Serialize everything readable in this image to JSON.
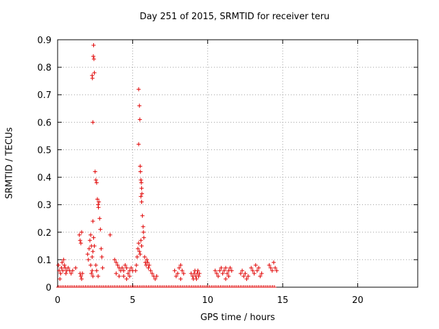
{
  "chart_data": {
    "type": "scatter",
    "title": "Day 251 of 2015, SRMTID for receiver teru",
    "xlabel": "GPS time / hours",
    "ylabel": "SRMTID / TECUs",
    "xlim": [
      0,
      24
    ],
    "ylim": [
      0,
      0.9
    ],
    "xticks": [
      "0",
      "5",
      "10",
      "15",
      "20"
    ],
    "xtick_values": [
      0,
      5,
      10,
      15,
      20
    ],
    "yticks": [
      "0",
      "0.1",
      "0.2",
      "0.3",
      "0.4",
      "0.5",
      "0.6",
      "0.7",
      "0.8",
      "0.9"
    ],
    "ytick_values": [
      0,
      0.1,
      0.2,
      0.3,
      0.4,
      0.5,
      0.6,
      0.7,
      0.8,
      0.9
    ],
    "grid": true,
    "marker": "+",
    "color": "#e00000",
    "series": [
      {
        "points": [
          [
            0.05,
            0.08
          ],
          [
            0.1,
            0.06
          ],
          [
            0.15,
            0.03
          ],
          [
            0.2,
            0.05
          ],
          [
            0.25,
            0.07
          ],
          [
            0.3,
            0.09
          ],
          [
            0.35,
            0.06
          ],
          [
            0.4,
            0.1
          ],
          [
            0.45,
            0.08
          ],
          [
            0.5,
            0.07
          ],
          [
            0.55,
            0.05
          ],
          [
            0.6,
            0.06
          ],
          [
            0.7,
            0.07
          ],
          [
            0.8,
            0.06
          ],
          [
            0.9,
            0.05
          ],
          [
            1.0,
            0.06
          ],
          [
            1.2,
            0.07
          ],
          [
            1.45,
            0.19
          ],
          [
            1.5,
            0.17
          ],
          [
            1.55,
            0.16
          ],
          [
            1.6,
            0.2
          ],
          [
            1.5,
            0.05
          ],
          [
            1.55,
            0.04
          ],
          [
            1.6,
            0.03
          ],
          [
            1.65,
            0.05
          ],
          [
            2.0,
            0.12
          ],
          [
            2.05,
            0.1
          ],
          [
            2.1,
            0.14
          ],
          [
            2.15,
            0.17
          ],
          [
            2.2,
            0.19
          ],
          [
            2.25,
            0.15
          ],
          [
            2.3,
            0.11
          ],
          [
            2.35,
            0.13
          ],
          [
            2.2,
            0.08
          ],
          [
            2.25,
            0.05
          ],
          [
            2.3,
            0.06
          ],
          [
            2.35,
            0.04
          ],
          [
            2.3,
            0.77
          ],
          [
            2.32,
            0.76
          ],
          [
            2.35,
            0.6
          ],
          [
            2.38,
            0.84
          ],
          [
            2.4,
            0.88
          ],
          [
            2.42,
            0.83
          ],
          [
            2.45,
            0.78
          ],
          [
            2.35,
            0.24
          ],
          [
            2.4,
            0.18
          ],
          [
            2.45,
            0.15
          ],
          [
            2.5,
            0.42
          ],
          [
            2.55,
            0.39
          ],
          [
            2.6,
            0.38
          ],
          [
            2.65,
            0.32
          ],
          [
            2.7,
            0.3
          ],
          [
            2.72,
            0.29
          ],
          [
            2.75,
            0.31
          ],
          [
            2.8,
            0.25
          ],
          [
            2.85,
            0.21
          ],
          [
            2.9,
            0.14
          ],
          [
            2.95,
            0.11
          ],
          [
            3.0,
            0.07
          ],
          [
            2.55,
            0.08
          ],
          [
            2.6,
            0.06
          ],
          [
            2.7,
            0.04
          ],
          [
            3.5,
            0.19
          ],
          [
            3.8,
            0.1
          ],
          [
            3.9,
            0.09
          ],
          [
            4.0,
            0.08
          ],
          [
            4.1,
            0.07
          ],
          [
            4.2,
            0.06
          ],
          [
            4.3,
            0.07
          ],
          [
            4.4,
            0.06
          ],
          [
            4.5,
            0.08
          ],
          [
            4.6,
            0.07
          ],
          [
            4.7,
            0.05
          ],
          [
            4.8,
            0.06
          ],
          [
            4.9,
            0.07
          ],
          [
            5.0,
            0.06
          ],
          [
            4.4,
            0.04
          ],
          [
            4.6,
            0.03
          ],
          [
            4.8,
            0.04
          ],
          [
            3.9,
            0.05
          ],
          [
            4.1,
            0.04
          ],
          [
            5.2,
            0.06
          ],
          [
            5.25,
            0.08
          ],
          [
            5.3,
            0.11
          ],
          [
            5.35,
            0.14
          ],
          [
            5.4,
            0.16
          ],
          [
            5.45,
            0.13
          ],
          [
            5.5,
            0.12
          ],
          [
            5.55,
            0.17
          ],
          [
            5.6,
            0.15
          ],
          [
            5.4,
            0.72
          ],
          [
            5.45,
            0.66
          ],
          [
            5.48,
            0.61
          ],
          [
            5.4,
            0.52
          ],
          [
            5.5,
            0.44
          ],
          [
            5.52,
            0.42
          ],
          [
            5.55,
            0.39
          ],
          [
            5.58,
            0.38
          ],
          [
            5.6,
            0.36
          ],
          [
            5.62,
            0.34
          ],
          [
            5.55,
            0.33
          ],
          [
            5.6,
            0.31
          ],
          [
            5.65,
            0.26
          ],
          [
            5.7,
            0.22
          ],
          [
            5.72,
            0.2
          ],
          [
            5.75,
            0.18
          ],
          [
            5.8,
            0.11
          ],
          [
            5.85,
            0.09
          ],
          [
            5.9,
            0.08
          ],
          [
            5.95,
            0.1
          ],
          [
            6.0,
            0.09
          ],
          [
            6.05,
            0.07
          ],
          [
            6.1,
            0.08
          ],
          [
            6.2,
            0.06
          ],
          [
            6.3,
            0.05
          ],
          [
            6.4,
            0.04
          ],
          [
            6.5,
            0.03
          ],
          [
            6.6,
            0.04
          ],
          [
            7.8,
            0.06
          ],
          [
            7.9,
            0.04
          ],
          [
            8.0,
            0.05
          ],
          [
            8.1,
            0.07
          ],
          [
            8.2,
            0.08
          ],
          [
            8.3,
            0.06
          ],
          [
            8.4,
            0.05
          ],
          [
            8.2,
            0.03
          ],
          [
            8.9,
            0.05
          ],
          [
            9.0,
            0.04
          ],
          [
            9.05,
            0.03
          ],
          [
            9.1,
            0.05
          ],
          [
            9.15,
            0.06
          ],
          [
            9.2,
            0.04
          ],
          [
            9.25,
            0.03
          ],
          [
            9.3,
            0.05
          ],
          [
            9.35,
            0.06
          ],
          [
            9.4,
            0.04
          ],
          [
            9.45,
            0.05
          ],
          [
            10.5,
            0.06
          ],
          [
            10.6,
            0.05
          ],
          [
            10.7,
            0.04
          ],
          [
            10.8,
            0.06
          ],
          [
            10.9,
            0.07
          ],
          [
            11.0,
            0.05
          ],
          [
            11.1,
            0.06
          ],
          [
            11.2,
            0.07
          ],
          [
            11.3,
            0.05
          ],
          [
            11.4,
            0.06
          ],
          [
            11.5,
            0.07
          ],
          [
            11.6,
            0.06
          ],
          [
            11.2,
            0.03
          ],
          [
            11.4,
            0.04
          ],
          [
            12.2,
            0.05
          ],
          [
            12.3,
            0.06
          ],
          [
            12.4,
            0.04
          ],
          [
            12.5,
            0.05
          ],
          [
            12.6,
            0.03
          ],
          [
            12.7,
            0.04
          ],
          [
            12.9,
            0.07
          ],
          [
            13.0,
            0.06
          ],
          [
            13.1,
            0.05
          ],
          [
            13.2,
            0.08
          ],
          [
            13.3,
            0.06
          ],
          [
            13.4,
            0.07
          ],
          [
            13.5,
            0.04
          ],
          [
            13.6,
            0.05
          ],
          [
            14.1,
            0.08
          ],
          [
            14.2,
            0.07
          ],
          [
            14.3,
            0.06
          ],
          [
            14.4,
            0.09
          ],
          [
            14.5,
            0.07
          ],
          [
            14.6,
            0.06
          ]
        ]
      }
    ]
  }
}
